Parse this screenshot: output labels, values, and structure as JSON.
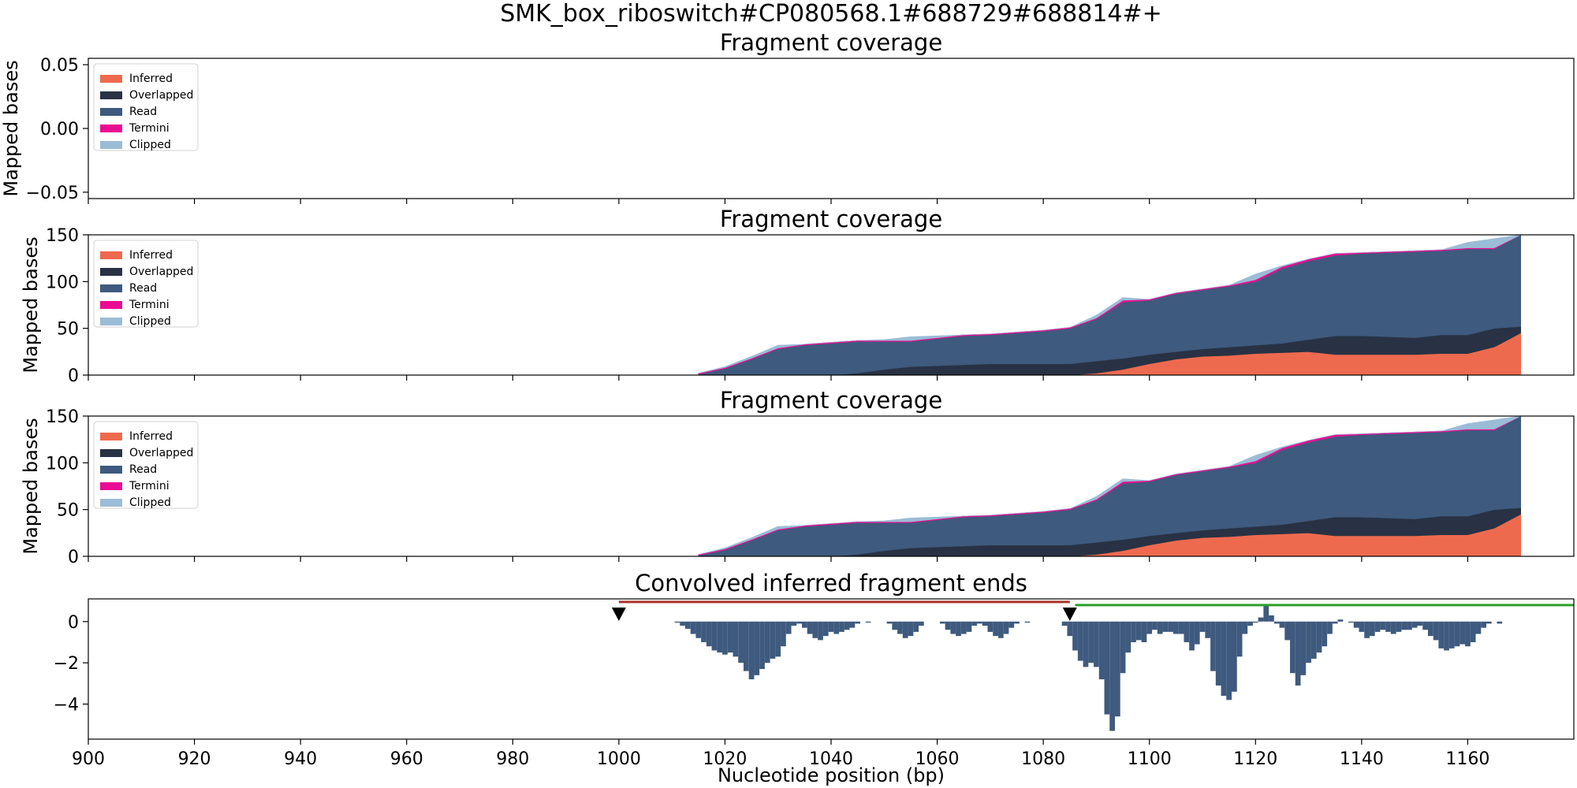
{
  "figure_title": "SMK_box_riboswitch#CP080568.1#688729#688814#+",
  "colors": {
    "inferred": "#ee6a4e",
    "overlapped": "#283244",
    "read": "#3e5a7e",
    "termini": "#ea0d93",
    "clipped": "#9bbcd6",
    "conv": "#3e5a7e",
    "seg_red": "#a8342b",
    "seg_green": "#2aa02a"
  },
  "legend": [
    "Inferred",
    "Overlapped",
    "Read",
    "Termini",
    "Clipped"
  ],
  "chart_data": [
    {
      "type": "area",
      "title": "Fragment coverage",
      "xlabel": "",
      "ylabel": "Mapped bases",
      "xlim": [
        900,
        1180
      ],
      "ylim": [
        -0.055,
        0.055
      ],
      "yticks": [
        "0.05",
        "0.00",
        "−0.05"
      ],
      "ytick_values": [
        0.05,
        0.0,
        -0.05
      ],
      "legend_position": "top-left",
      "series": []
    },
    {
      "type": "area",
      "stacked": true,
      "title": "Fragment coverage",
      "xlabel": "",
      "ylabel": "Mapped bases",
      "xlim": [
        900,
        1180
      ],
      "ylim": [
        0,
        150
      ],
      "yticks": [
        "0",
        "50",
        "100",
        "150"
      ],
      "ytick_values": [
        0,
        50,
        100,
        150
      ],
      "legend_position": "top-left",
      "x": [
        1015,
        1020,
        1025,
        1030,
        1035,
        1040,
        1045,
        1050,
        1055,
        1060,
        1065,
        1070,
        1075,
        1080,
        1085,
        1090,
        1095,
        1100,
        1105,
        1110,
        1115,
        1120,
        1125,
        1130,
        1135,
        1140,
        1145,
        1150,
        1155,
        1160,
        1165,
        1170
      ],
      "series": [
        {
          "name": "Inferred",
          "values": [
            0,
            0,
            0,
            0,
            0,
            0,
            0,
            0,
            0,
            0,
            0,
            0,
            0,
            0,
            0,
            2,
            6,
            12,
            17,
            20,
            21,
            23,
            24,
            25,
            22,
            22,
            22,
            22,
            23,
            23,
            30,
            45
          ]
        },
        {
          "name": "Overlapped",
          "values": [
            0,
            0,
            0,
            0,
            0,
            0,
            2,
            6,
            9,
            10,
            11,
            12,
            12,
            12,
            12,
            13,
            12,
            10,
            8,
            8,
            9,
            9,
            10,
            13,
            20,
            20,
            19,
            18,
            20,
            20,
            20,
            7
          ]
        },
        {
          "name": "Read",
          "values": [
            1,
            7,
            17,
            28,
            32,
            34,
            34,
            30,
            27,
            29,
            31,
            31,
            33,
            35,
            38,
            45,
            60,
            58,
            62,
            63,
            65,
            68,
            80,
            84,
            86,
            88,
            90,
            92,
            90,
            92,
            85,
            98
          ]
        },
        {
          "name": "Termini",
          "values": [
            1,
            1,
            1,
            1,
            1,
            1,
            1,
            1,
            1,
            1,
            1,
            1,
            1,
            1,
            1,
            1,
            2,
            1,
            1,
            1,
            1,
            2,
            2,
            2,
            2,
            1,
            1,
            1,
            1,
            1,
            1,
            0
          ]
        },
        {
          "name": "Clipped",
          "values": [
            0,
            1,
            2,
            3,
            0,
            0,
            0,
            1,
            4,
            2,
            0,
            0,
            0,
            0,
            0,
            3,
            3,
            0,
            0,
            0,
            0,
            6,
            1,
            0,
            0,
            0,
            0,
            0,
            0,
            6,
            10,
            0
          ]
        }
      ]
    },
    {
      "type": "area",
      "stacked": true,
      "title": "Fragment coverage",
      "xlabel": "",
      "ylabel": "Mapped bases",
      "xlim": [
        900,
        1180
      ],
      "ylim": [
        0,
        150
      ],
      "yticks": [
        "0",
        "50",
        "100",
        "150"
      ],
      "ytick_values": [
        0,
        50,
        100,
        150
      ],
      "legend_position": "top-left",
      "x": [
        1015,
        1020,
        1025,
        1030,
        1035,
        1040,
        1045,
        1050,
        1055,
        1060,
        1065,
        1070,
        1075,
        1080,
        1085,
        1090,
        1095,
        1100,
        1105,
        1110,
        1115,
        1120,
        1125,
        1130,
        1135,
        1140,
        1145,
        1150,
        1155,
        1160,
        1165,
        1170
      ],
      "series": [
        {
          "name": "Inferred",
          "values": [
            0,
            0,
            0,
            0,
            0,
            0,
            0,
            0,
            0,
            0,
            0,
            0,
            0,
            0,
            0,
            2,
            6,
            12,
            17,
            20,
            21,
            23,
            24,
            25,
            22,
            22,
            22,
            22,
            23,
            23,
            30,
            45
          ]
        },
        {
          "name": "Overlapped",
          "values": [
            0,
            0,
            0,
            0,
            0,
            0,
            2,
            6,
            9,
            10,
            11,
            12,
            12,
            12,
            12,
            13,
            12,
            10,
            8,
            8,
            9,
            9,
            10,
            13,
            20,
            20,
            19,
            18,
            20,
            20,
            20,
            7
          ]
        },
        {
          "name": "Read",
          "values": [
            1,
            7,
            17,
            28,
            32,
            34,
            34,
            30,
            27,
            29,
            31,
            31,
            33,
            35,
            38,
            45,
            60,
            58,
            62,
            63,
            65,
            68,
            80,
            84,
            86,
            88,
            90,
            92,
            90,
            92,
            85,
            98
          ]
        },
        {
          "name": "Termini",
          "values": [
            1,
            1,
            1,
            1,
            1,
            1,
            1,
            1,
            1,
            1,
            1,
            1,
            1,
            1,
            1,
            1,
            2,
            1,
            1,
            1,
            1,
            2,
            2,
            2,
            2,
            1,
            1,
            1,
            1,
            1,
            1,
            0
          ]
        },
        {
          "name": "Clipped",
          "values": [
            0,
            1,
            2,
            3,
            0,
            0,
            0,
            1,
            4,
            2,
            0,
            0,
            0,
            0,
            0,
            3,
            3,
            0,
            0,
            0,
            0,
            6,
            1,
            0,
            0,
            0,
            0,
            0,
            0,
            6,
            10,
            0
          ]
        }
      ]
    },
    {
      "type": "bar",
      "title": "Convolved inferred fragment ends",
      "xlabel": "Nucleotide position (bp)",
      "ylabel": "",
      "xlim": [
        900,
        1180
      ],
      "ylim": [
        -5.7,
        1.1
      ],
      "yticks": [
        "0",
        "−2",
        "−4"
      ],
      "ytick_values": [
        0,
        -2,
        -4
      ],
      "xticks": [
        "900",
        "920",
        "940",
        "960",
        "980",
        "1000",
        "1020",
        "1040",
        "1060",
        "1080",
        "1100",
        "1120",
        "1140",
        "1160"
      ],
      "xtick_values": [
        900,
        920,
        940,
        960,
        980,
        1000,
        1020,
        1040,
        1060,
        1080,
        1100,
        1120,
        1140,
        1160
      ],
      "markers": [
        1000,
        1085
      ],
      "segments": [
        {
          "from": 1000,
          "to": 1085,
          "y": 0.95,
          "color": "seg_red"
        },
        {
          "from": 1086,
          "to": 1180,
          "y": 0.8,
          "color": "seg_green"
        }
      ],
      "bars": [
        [
          1011,
          -0.05
        ],
        [
          1012,
          -0.2
        ],
        [
          1013,
          -0.35
        ],
        [
          1014,
          -0.6
        ],
        [
          1015,
          -0.8
        ],
        [
          1016,
          -1.0
        ],
        [
          1017,
          -1.2
        ],
        [
          1018,
          -1.4
        ],
        [
          1019,
          -1.5
        ],
        [
          1020,
          -1.6
        ],
        [
          1021,
          -1.5
        ],
        [
          1022,
          -1.7
        ],
        [
          1023,
          -2.0
        ],
        [
          1024,
          -2.4
        ],
        [
          1025,
          -2.8
        ],
        [
          1026,
          -2.6
        ],
        [
          1027,
          -2.3
        ],
        [
          1028,
          -2.0
        ],
        [
          1029,
          -1.8
        ],
        [
          1030,
          -1.7
        ],
        [
          1031,
          -1.2
        ],
        [
          1032,
          -0.6
        ],
        [
          1033,
          -0.2
        ],
        [
          1034,
          -0.1
        ],
        [
          1035,
          -0.3
        ],
        [
          1036,
          -0.6
        ],
        [
          1037,
          -0.8
        ],
        [
          1038,
          -0.9
        ],
        [
          1039,
          -0.7
        ],
        [
          1040,
          -0.5
        ],
        [
          1041,
          -0.6
        ],
        [
          1042,
          -0.5
        ],
        [
          1043,
          -0.4
        ],
        [
          1044,
          -0.3
        ],
        [
          1045,
          -0.1
        ],
        [
          1047,
          -0.05
        ],
        [
          1051,
          -0.1
        ],
        [
          1052,
          -0.4
        ],
        [
          1053,
          -0.6
        ],
        [
          1054,
          -0.8
        ],
        [
          1055,
          -0.7
        ],
        [
          1056,
          -0.5
        ],
        [
          1057,
          -0.2
        ],
        [
          1061,
          -0.1
        ],
        [
          1062,
          -0.4
        ],
        [
          1063,
          -0.6
        ],
        [
          1064,
          -0.7
        ],
        [
          1065,
          -0.6
        ],
        [
          1066,
          -0.5
        ],
        [
          1067,
          -0.2
        ],
        [
          1068,
          -0.1
        ],
        [
          1069,
          -0.2
        ],
        [
          1070,
          -0.5
        ],
        [
          1071,
          -0.7
        ],
        [
          1072,
          -0.8
        ],
        [
          1073,
          -0.6
        ],
        [
          1074,
          -0.3
        ],
        [
          1075,
          -0.1
        ],
        [
          1077,
          -0.05
        ],
        [
          1084,
          -0.2
        ],
        [
          1085,
          -0.7
        ],
        [
          1086,
          -1.4
        ],
        [
          1087,
          -1.9
        ],
        [
          1088,
          -2.2
        ],
        [
          1089,
          -2.0
        ],
        [
          1090,
          -2.2
        ],
        [
          1091,
          -2.8
        ],
        [
          1092,
          -4.5
        ],
        [
          1093,
          -5.3
        ],
        [
          1094,
          -4.6
        ],
        [
          1095,
          -2.5
        ],
        [
          1096,
          -1.5
        ],
        [
          1097,
          -1.0
        ],
        [
          1098,
          -0.9
        ],
        [
          1099,
          -1.0
        ],
        [
          1100,
          -0.6
        ],
        [
          1101,
          -0.4
        ],
        [
          1102,
          -0.6
        ],
        [
          1103,
          -0.5
        ],
        [
          1104,
          -0.5
        ],
        [
          1105,
          -0.6
        ],
        [
          1106,
          -0.6
        ],
        [
          1107,
          -1.0
        ],
        [
          1108,
          -1.4
        ],
        [
          1109,
          -1.1
        ],
        [
          1110,
          -0.5
        ],
        [
          1111,
          -0.8
        ],
        [
          1112,
          -2.4
        ],
        [
          1113,
          -3.1
        ],
        [
          1114,
          -3.6
        ],
        [
          1115,
          -3.8
        ],
        [
          1116,
          -3.4
        ],
        [
          1117,
          -1.7
        ],
        [
          1118,
          -0.6
        ],
        [
          1119,
          -0.2
        ],
        [
          1120,
          -0.05
        ],
        [
          1121,
          0.2
        ],
        [
          1122,
          0.8
        ],
        [
          1123,
          0.3
        ],
        [
          1124,
          -0.1
        ],
        [
          1125,
          -0.3
        ],
        [
          1126,
          -0.9
        ],
        [
          1127,
          -2.5
        ],
        [
          1128,
          -3.1
        ],
        [
          1129,
          -2.6
        ],
        [
          1130,
          -2.0
        ],
        [
          1131,
          -1.8
        ],
        [
          1132,
          -1.5
        ],
        [
          1133,
          -1.2
        ],
        [
          1134,
          -0.6
        ],
        [
          1135,
          -0.1
        ],
        [
          1136,
          0.1
        ],
        [
          1138,
          -0.05
        ],
        [
          1139,
          -0.3
        ],
        [
          1140,
          -0.5
        ],
        [
          1141,
          -0.8
        ],
        [
          1142,
          -0.7
        ],
        [
          1143,
          -0.5
        ],
        [
          1144,
          -0.4
        ],
        [
          1145,
          -0.5
        ],
        [
          1146,
          -0.6
        ],
        [
          1147,
          -0.5
        ],
        [
          1148,
          -0.4
        ],
        [
          1149,
          -0.4
        ],
        [
          1150,
          -0.3
        ],
        [
          1151,
          -0.2
        ],
        [
          1152,
          -0.4
        ],
        [
          1153,
          -0.7
        ],
        [
          1154,
          -0.9
        ],
        [
          1155,
          -1.3
        ],
        [
          1156,
          -1.4
        ],
        [
          1157,
          -1.3
        ],
        [
          1158,
          -1.2
        ],
        [
          1159,
          -1.1
        ],
        [
          1160,
          -1.2
        ],
        [
          1161,
          -1.0
        ],
        [
          1162,
          -0.6
        ],
        [
          1163,
          -0.3
        ],
        [
          1164,
          -0.1
        ],
        [
          1166,
          -0.1
        ]
      ]
    }
  ]
}
